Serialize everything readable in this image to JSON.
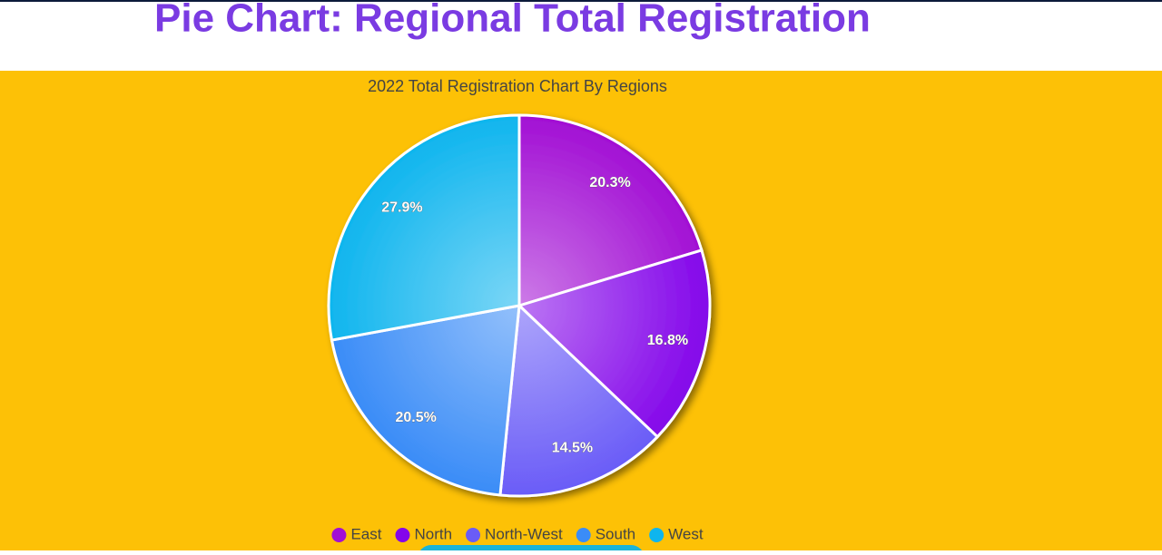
{
  "header": {
    "title": "Pie Chart: Regional Total Registration"
  },
  "chart_data": {
    "type": "pie",
    "title": "2022 Total Registration Chart By Regions",
    "categories": [
      "East",
      "North",
      "North-West",
      "South",
      "West"
    ],
    "values": [
      20.3,
      16.8,
      14.5,
      20.5,
      27.9
    ],
    "value_labels": [
      "20.3%",
      "16.8%",
      "14.5%",
      "20.5%",
      "27.9%"
    ],
    "colors": [
      "#a20fd4",
      "#8406ea",
      "#6a5cf7",
      "#3a8cf7",
      "#0fb5ee"
    ],
    "legend": "bottom"
  }
}
